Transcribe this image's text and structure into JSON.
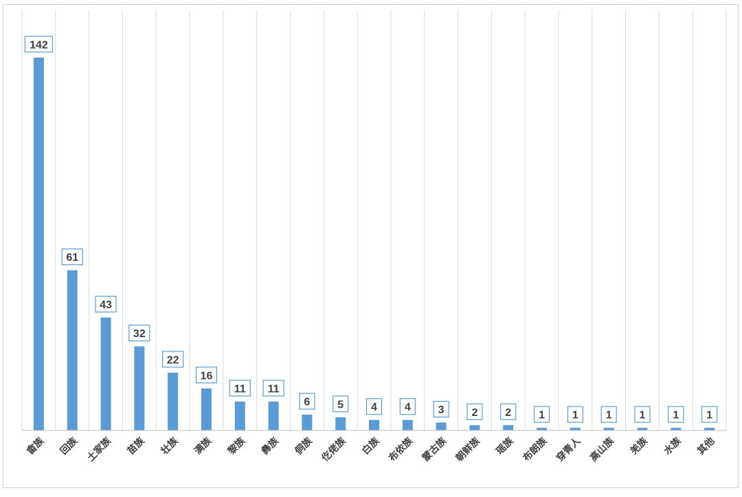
{
  "chart_data": {
    "type": "bar",
    "categories": [
      "畲族",
      "回族",
      "土家族",
      "苗族",
      "壮族",
      "满族",
      "黎族",
      "彝族",
      "侗族",
      "仡佬族",
      "白族",
      "布依族",
      "蒙古族",
      "朝鲜族",
      "瑶族",
      "布朗族",
      "穿青人",
      "高山族",
      "羌族",
      "水族",
      "其他"
    ],
    "values": [
      142,
      61,
      43,
      32,
      22,
      16,
      11,
      11,
      6,
      5,
      4,
      4,
      3,
      2,
      2,
      1,
      1,
      1,
      1,
      1,
      1
    ],
    "labels": [
      "142",
      "61",
      "43",
      "32",
      "22",
      "16",
      "11",
      "11",
      "6",
      "5",
      "4",
      "4",
      "3",
      "2",
      "2",
      "1",
      "1",
      "1",
      "1",
      "1",
      "1"
    ],
    "title": "",
    "xlabel": "",
    "ylabel": "",
    "ylim": [
      0,
      160
    ],
    "grid": "vertical category separators",
    "legend": "none",
    "colors": {
      "bar": "#5b9bd5",
      "grid": "#d9d9d9",
      "axis": "#bfbfbf",
      "label_border": "#5b9bd5",
      "text": "#404040"
    }
  }
}
